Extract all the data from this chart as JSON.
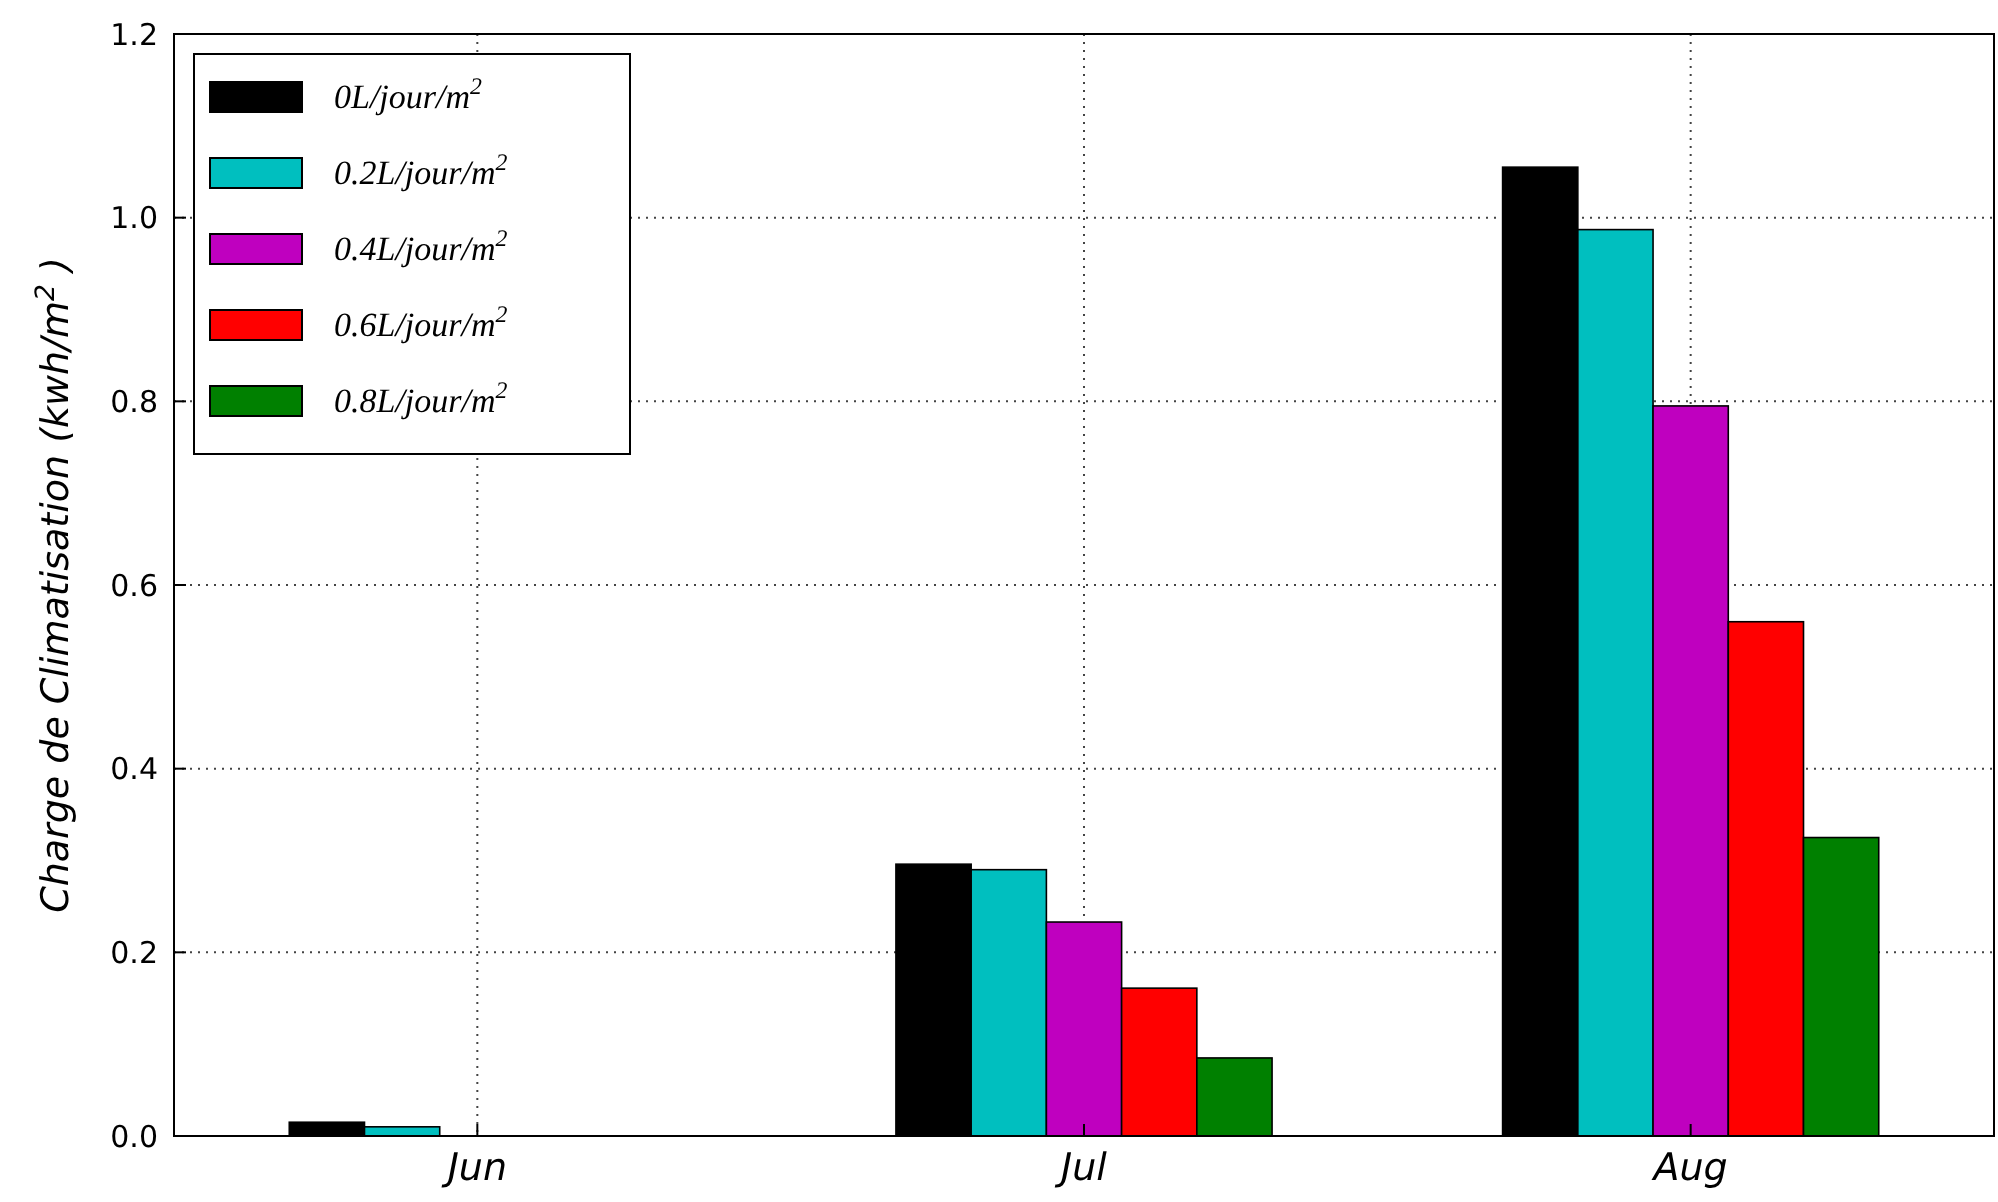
{
  "chart_data": {
    "type": "bar",
    "ylabel": "Charge de Climatisation (kwh/m$^{2}$ )",
    "categories": [
      "Jun",
      "Jul",
      "Aug"
    ],
    "series": [
      {
        "name": "0L/jour/m$^{2}$",
        "color": "#000000",
        "values": [
          0.015,
          0.296,
          1.055
        ]
      },
      {
        "name": "0.2L/jour/m$^{2}$",
        "color": "#00bfbf",
        "values": [
          0.01,
          0.29,
          0.987
        ]
      },
      {
        "name": "0.4L/jour/m$^{2}$",
        "color": "#bf00bf",
        "values": [
          0,
          0.233,
          0.795
        ]
      },
      {
        "name": "0.6L/jour/m$^{2}$",
        "color": "#ff0000",
        "values": [
          0,
          0.161,
          0.56
        ]
      },
      {
        "name": "0.8L/jour/m$^{2}$",
        "color": "#008000",
        "values": [
          0,
          0.085,
          0.325
        ]
      }
    ],
    "ylim": [
      0,
      1.2
    ],
    "yticks": [
      {
        "value": 0,
        "label": "0.0"
      },
      {
        "value": 0.2,
        "label": "0.2"
      },
      {
        "value": 0.4,
        "label": "0.4"
      },
      {
        "value": 0.6,
        "label": "0.6"
      },
      {
        "value": 0.8,
        "label": "0.8"
      },
      {
        "value": 1,
        "label": "1.0"
      },
      {
        "value": 1.2,
        "label": "1.2"
      }
    ],
    "grid": true,
    "legend": "top left"
  }
}
